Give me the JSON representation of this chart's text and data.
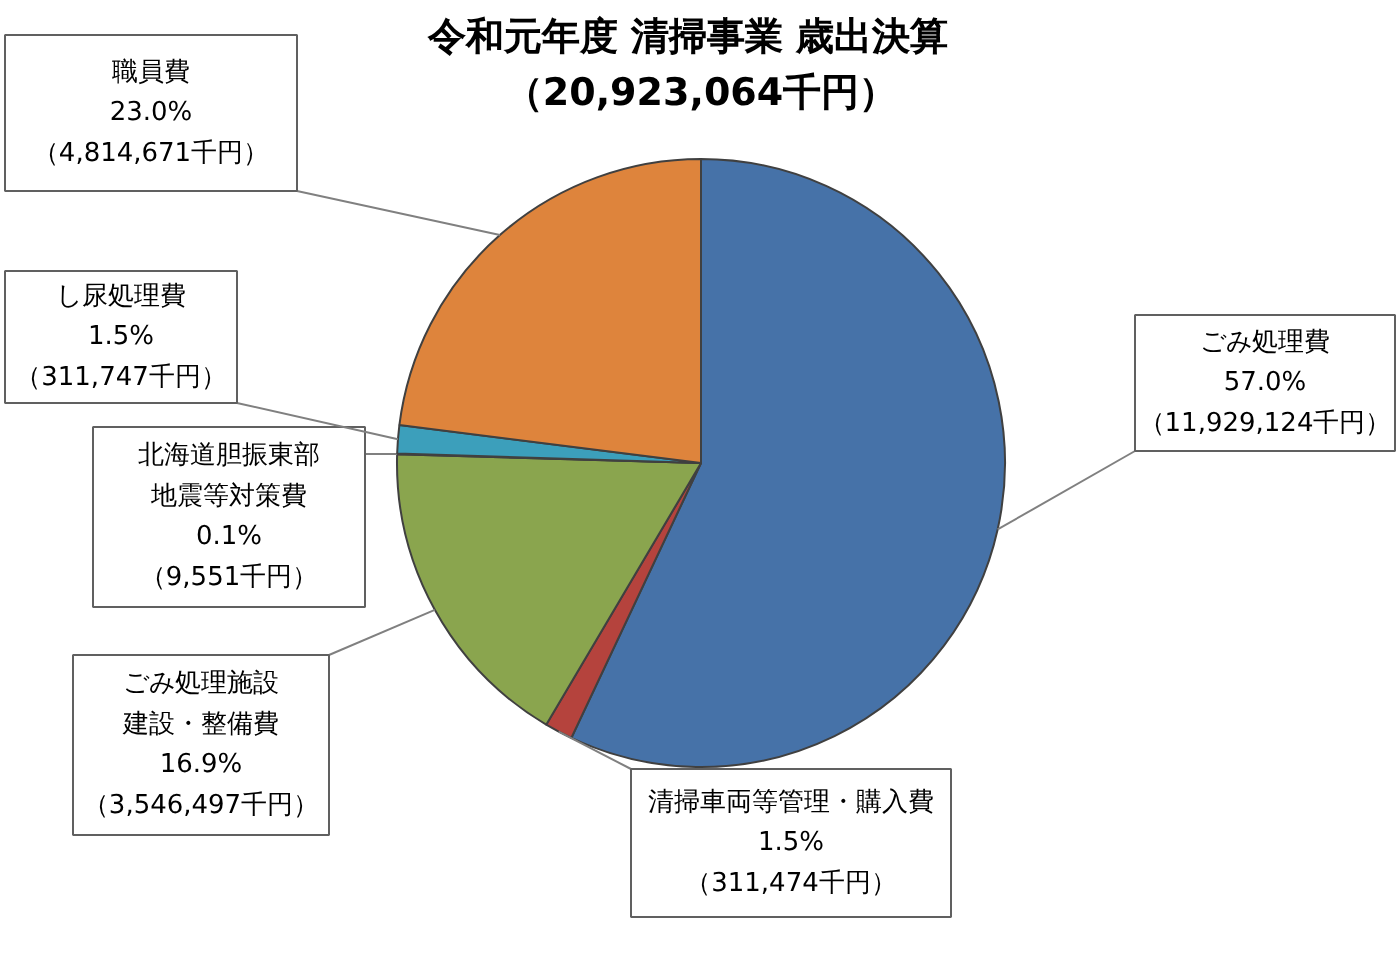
{
  "chart_data": {
    "type": "pie",
    "title": "令和元年度  清掃事業  歳出決算",
    "subtitle": "（20,923,064千円）",
    "categories": [
      "ごみ処理費",
      "清掃車両等管理・購入費",
      "ごみ処理施設建設・整備費",
      "北海道胆振東部地震等対策費",
      "し尿処理費",
      "職員費"
    ],
    "values": [
      11929124,
      311474,
      3546497,
      9551,
      311747,
      4814671
    ],
    "colors": [
      "#4672a8",
      "#b5433d",
      "#8aa54e",
      "#1f3a5a",
      "#3c9fbb",
      "#de843c"
    ],
    "value_labels": [
      "57.0%\n（11,929,124千円）",
      "1.5%\n（311,474千円）",
      "16.9%\n（3,546,497千円）",
      "0.1%\n（9,551千円）",
      "1.5%\n（311,747千円）",
      "23.0%\n（4,814,671千円）"
    ]
  }
}
